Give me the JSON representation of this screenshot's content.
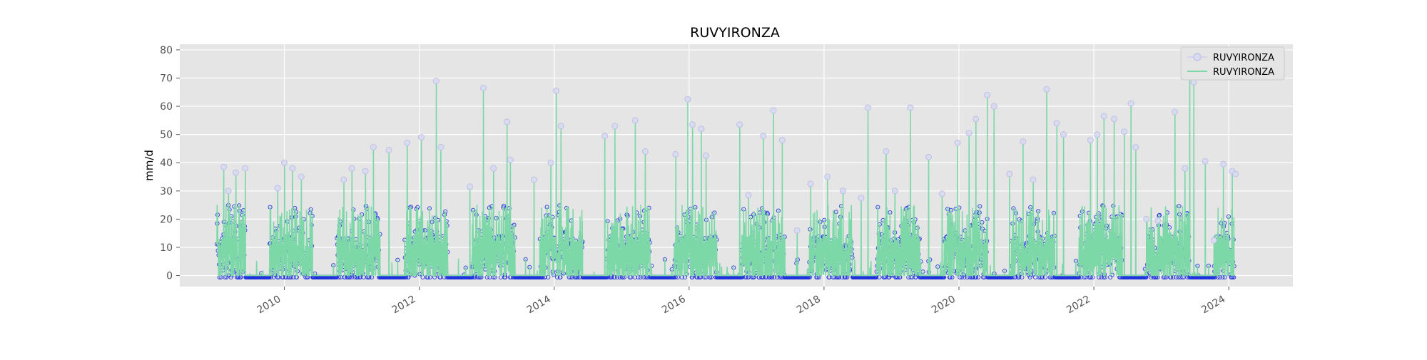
{
  "chart_data": {
    "type": "line",
    "title": "RUVYIRONZA",
    "xlabel": "",
    "ylabel": "mm/d",
    "xlim": [
      2008.45,
      2024.95
    ],
    "ylim": [
      -3.9,
      82
    ],
    "x_ticks": [
      2010,
      2012,
      2014,
      2016,
      2018,
      2020,
      2022,
      2024
    ],
    "y_ticks": [
      0,
      10,
      20,
      30,
      40,
      50,
      60,
      70,
      80
    ],
    "grid": true,
    "legend_position": "top-right",
    "style": "ggplot",
    "colors": {
      "plot_background": "#e5e5e5",
      "grid": "#ffffff",
      "markers_series": "#2233dd",
      "line_series": "#7dd8a8",
      "text": "#000000",
      "tick_text": "#555555"
    },
    "series": [
      {
        "name": "RUVYIRONZA",
        "kind": "markers",
        "color": "#2233dd",
        "note": "daily values 2009–2023 (dense, mostly 0 with rainy-season spikes)"
      },
      {
        "name": "RUVYIRONZA",
        "kind": "line",
        "color": "#7dd8a8",
        "peaks": [
          {
            "x": 2009.1,
            "y": 38.5
          },
          {
            "x": 2009.17,
            "y": 30
          },
          {
            "x": 2009.28,
            "y": 36.5
          },
          {
            "x": 2009.42,
            "y": 38
          },
          {
            "x": 2009.9,
            "y": 31
          },
          {
            "x": 2010.0,
            "y": 40
          },
          {
            "x": 2010.12,
            "y": 38
          },
          {
            "x": 2010.25,
            "y": 35
          },
          {
            "x": 2010.88,
            "y": 34
          },
          {
            "x": 2011.0,
            "y": 38
          },
          {
            "x": 2011.2,
            "y": 37
          },
          {
            "x": 2011.32,
            "y": 45.5
          },
          {
            "x": 2011.55,
            "y": 44.5
          },
          {
            "x": 2011.82,
            "y": 47
          },
          {
            "x": 2012.03,
            "y": 49
          },
          {
            "x": 2012.25,
            "y": 69
          },
          {
            "x": 2012.32,
            "y": 45.5
          },
          {
            "x": 2012.75,
            "y": 31.5
          },
          {
            "x": 2012.95,
            "y": 66.5
          },
          {
            "x": 2013.1,
            "y": 38
          },
          {
            "x": 2013.3,
            "y": 54.5
          },
          {
            "x": 2013.35,
            "y": 41
          },
          {
            "x": 2013.7,
            "y": 34
          },
          {
            "x": 2013.95,
            "y": 40
          },
          {
            "x": 2014.03,
            "y": 65.5
          },
          {
            "x": 2014.1,
            "y": 53
          },
          {
            "x": 2014.75,
            "y": 49.5
          },
          {
            "x": 2014.9,
            "y": 53
          },
          {
            "x": 2015.2,
            "y": 55
          },
          {
            "x": 2015.35,
            "y": 44
          },
          {
            "x": 2015.8,
            "y": 43
          },
          {
            "x": 2015.98,
            "y": 62.5
          },
          {
            "x": 2016.05,
            "y": 53.5
          },
          {
            "x": 2016.18,
            "y": 52
          },
          {
            "x": 2016.25,
            "y": 42.5
          },
          {
            "x": 2016.75,
            "y": 53.5
          },
          {
            "x": 2016.88,
            "y": 28.5
          },
          {
            "x": 2017.1,
            "y": 49.5
          },
          {
            "x": 2017.25,
            "y": 58.5
          },
          {
            "x": 2017.38,
            "y": 48
          },
          {
            "x": 2017.6,
            "y": 16
          },
          {
            "x": 2017.8,
            "y": 32.5
          },
          {
            "x": 2018.05,
            "y": 35
          },
          {
            "x": 2018.28,
            "y": 30
          },
          {
            "x": 2018.65,
            "y": 59.5
          },
          {
            "x": 2018.55,
            "y": 27.5
          },
          {
            "x": 2018.92,
            "y": 44
          },
          {
            "x": 2019.05,
            "y": 30
          },
          {
            "x": 2019.28,
            "y": 59.5
          },
          {
            "x": 2019.55,
            "y": 42
          },
          {
            "x": 2019.75,
            "y": 29
          },
          {
            "x": 2019.98,
            "y": 47
          },
          {
            "x": 2020.15,
            "y": 50.5
          },
          {
            "x": 2020.25,
            "y": 55.5
          },
          {
            "x": 2020.42,
            "y": 64
          },
          {
            "x": 2020.52,
            "y": 60
          },
          {
            "x": 2020.75,
            "y": 36
          },
          {
            "x": 2020.95,
            "y": 47.5
          },
          {
            "x": 2021.1,
            "y": 34
          },
          {
            "x": 2021.3,
            "y": 66
          },
          {
            "x": 2021.45,
            "y": 54
          },
          {
            "x": 2021.55,
            "y": 50
          },
          {
            "x": 2021.95,
            "y": 48
          },
          {
            "x": 2022.05,
            "y": 50
          },
          {
            "x": 2022.15,
            "y": 56.5
          },
          {
            "x": 2022.3,
            "y": 55.5
          },
          {
            "x": 2022.45,
            "y": 51
          },
          {
            "x": 2022.55,
            "y": 61
          },
          {
            "x": 2022.62,
            "y": 45.5
          },
          {
            "x": 2022.78,
            "y": 20
          },
          {
            "x": 2022.95,
            "y": 19.5
          },
          {
            "x": 2023.2,
            "y": 58
          },
          {
            "x": 2023.35,
            "y": 38
          },
          {
            "x": 2023.42,
            "y": 79
          },
          {
            "x": 2023.48,
            "y": 68.5
          },
          {
            "x": 2023.65,
            "y": 40.5
          },
          {
            "x": 2023.78,
            "y": 12.5
          },
          {
            "x": 2023.92,
            "y": 39.5
          },
          {
            "x": 2024.05,
            "y": 37
          },
          {
            "x": 2024.1,
            "y": 36
          }
        ]
      }
    ]
  },
  "legend": {
    "items": [
      {
        "label": "RUVYIRONZA",
        "kind": "markers",
        "color": "#2233dd"
      },
      {
        "label": "RUVYIRONZA",
        "kind": "line",
        "color": "#7dd8a8"
      }
    ]
  }
}
